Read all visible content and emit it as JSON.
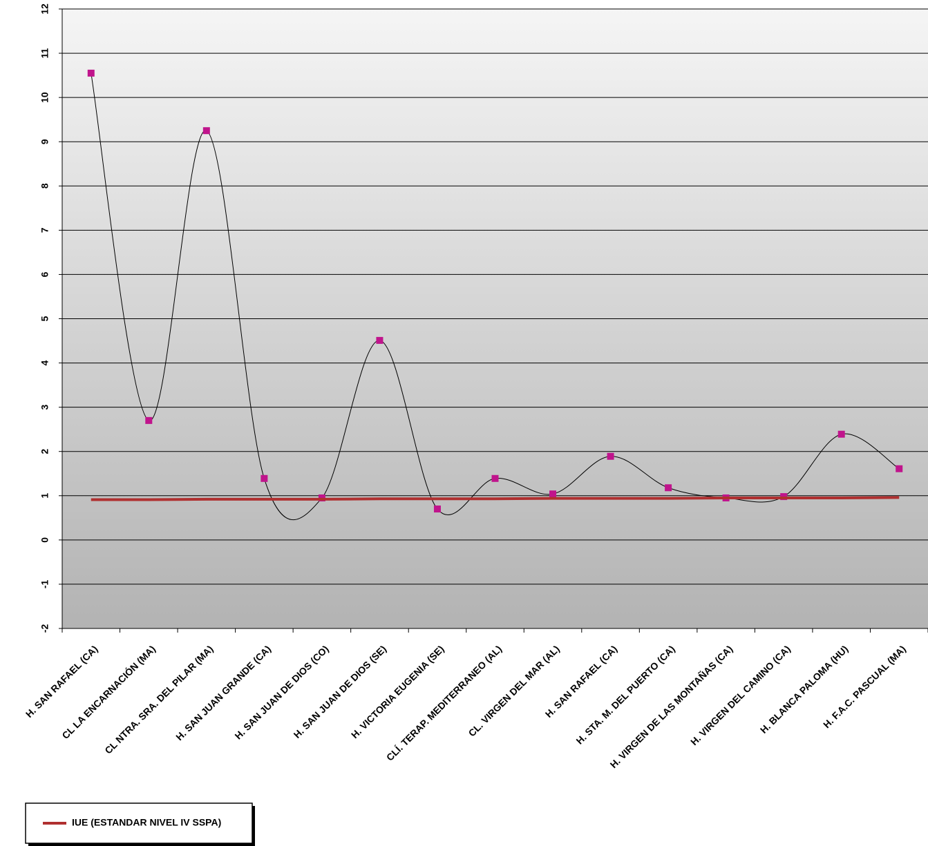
{
  "chart_data": {
    "type": "line",
    "categories": [
      "H. SAN RAFAEL (CA)",
      "CL LA ENCARNACIÓN (MA)",
      "CL NTRA. SRA. DEL PILAR (MA)",
      "H. SAN JUAN GRANDE (CA)",
      "H. SAN JUAN DE DIOS (CO)",
      "H. SAN JUAN DE DIOS (SE)",
      "H. VICTORIA EUGENIA (SE)",
      "CLÍ. TERAP. MEDITERRANEO (AL)",
      "CL. VIRGEN DEL MAR (AL)",
      "H. SAN RAFAEL (CA)",
      "H. STA. M. DEL PUERTO (CA)",
      "H. VIRGEN DE LAS MONTAÑAS (CA)",
      "H. VIRGEN DEL CAMINO (CA)",
      "H. BLANCA PALOMA (HU)",
      "H. F.A.C. PASCUAL (MA)"
    ],
    "series": [
      {
        "color": "#c0148c",
        "values": [
          10.55,
          2.7,
          9.25,
          1.39,
          0.95,
          4.51,
          0.7,
          1.39,
          1.04,
          1.89,
          1.18,
          0.95,
          0.98,
          2.39,
          1.61
        ]
      },
      {
        "name": "IUE (ESTANDAR NIVEL IV SSPA)",
        "color": "#b03030",
        "values": [
          0.91,
          0.91,
          0.92,
          0.92,
          0.92,
          0.93,
          0.93,
          0.93,
          0.94,
          0.94,
          0.94,
          0.95,
          0.95,
          0.95,
          0.96
        ]
      }
    ],
    "ylim": [
      -2,
      12
    ],
    "yticks": [
      -2,
      -1,
      0,
      1,
      2,
      3,
      4,
      5,
      6,
      7,
      8,
      9,
      10,
      11,
      12
    ],
    "grid": true
  }
}
